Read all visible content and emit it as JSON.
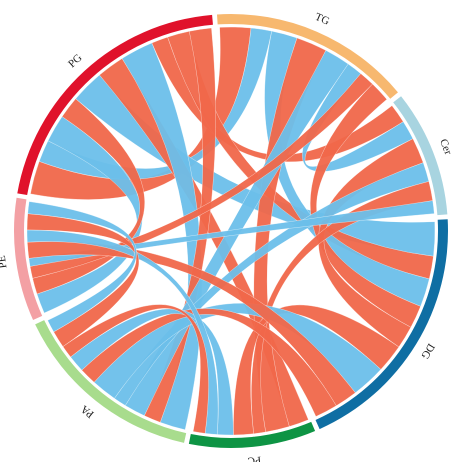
{
  "chart_data": {
    "type": "chord",
    "sectors": [
      {
        "name": "PG",
        "color": "#e0122b",
        "value": 75
      },
      {
        "name": "TG",
        "color": "#f7b86f",
        "value": 54
      },
      {
        "name": "Cer",
        "color": "#a8d4e0",
        "value": 34
      },
      {
        "name": "DG",
        "color": "#0f6ea3",
        "value": 69
      },
      {
        "name": "PC",
        "color": "#0e9444",
        "value": 34
      },
      {
        "name": "PA",
        "color": "#a8dc8d",
        "value": 52
      },
      {
        "name": "PE",
        "color": "#f3a0a4",
        "value": 33
      }
    ],
    "chords": [
      {
        "source": 0,
        "target": 1,
        "value": 6,
        "color": "#f0674a"
      },
      {
        "source": 0,
        "target": 1,
        "value": 4,
        "color": "#6bbfea"
      },
      {
        "source": 0,
        "target": 6,
        "value": 5,
        "color": "#6bbfea"
      },
      {
        "source": 0,
        "target": 6,
        "value": 4,
        "color": "#f0674a"
      },
      {
        "source": 0,
        "target": 3,
        "value": 6,
        "color": "#6bbfea"
      },
      {
        "source": 0,
        "target": 4,
        "value": 5,
        "color": "#f0674a"
      },
      {
        "source": 0,
        "target": 5,
        "value": 6,
        "color": "#6bbfea"
      },
      {
        "source": 0,
        "target": 2,
        "value": 3,
        "color": "#f0674a"
      },
      {
        "source": 0,
        "target": 3,
        "value": 4,
        "color": "#f0674a"
      },
      {
        "source": 0,
        "target": 5,
        "value": 4,
        "color": "#f0674a"
      },
      {
        "source": 1,
        "target": 3,
        "value": 5,
        "color": "#6bbfea"
      },
      {
        "source": 1,
        "target": 4,
        "value": 6,
        "color": "#f0674a"
      },
      {
        "source": 1,
        "target": 5,
        "value": 5,
        "color": "#6bbfea"
      },
      {
        "source": 1,
        "target": 2,
        "value": 3,
        "color": "#6bbfea"
      },
      {
        "source": 1,
        "target": 6,
        "value": 3,
        "color": "#f0674a"
      },
      {
        "source": 1,
        "target": 3,
        "value": 4,
        "color": "#f0674a"
      },
      {
        "source": 2,
        "target": 3,
        "value": 4,
        "color": "#f0674a"
      },
      {
        "source": 2,
        "target": 5,
        "value": 3,
        "color": "#6bbfea"
      },
      {
        "source": 2,
        "target": 4,
        "value": 3,
        "color": "#f0674a"
      },
      {
        "source": 2,
        "target": 6,
        "value": 2,
        "color": "#6bbfea"
      },
      {
        "source": 3,
        "target": 4,
        "value": 5,
        "color": "#f0674a"
      },
      {
        "source": 3,
        "target": 5,
        "value": 6,
        "color": "#6bbfea"
      },
      {
        "source": 3,
        "target": 6,
        "value": 4,
        "color": "#f0674a"
      },
      {
        "source": 3,
        "target": 5,
        "value": 4,
        "color": "#f0674a"
      },
      {
        "source": 4,
        "target": 5,
        "value": 4,
        "color": "#6bbfea"
      },
      {
        "source": 4,
        "target": 6,
        "value": 3,
        "color": "#6bbfea"
      },
      {
        "source": 4,
        "target": 5,
        "value": 3,
        "color": "#f0674a"
      },
      {
        "source": 5,
        "target": 6,
        "value": 4,
        "color": "#f0674a"
      },
      {
        "source": 5,
        "target": 6,
        "value": 3,
        "color": "#6bbfea"
      }
    ]
  }
}
